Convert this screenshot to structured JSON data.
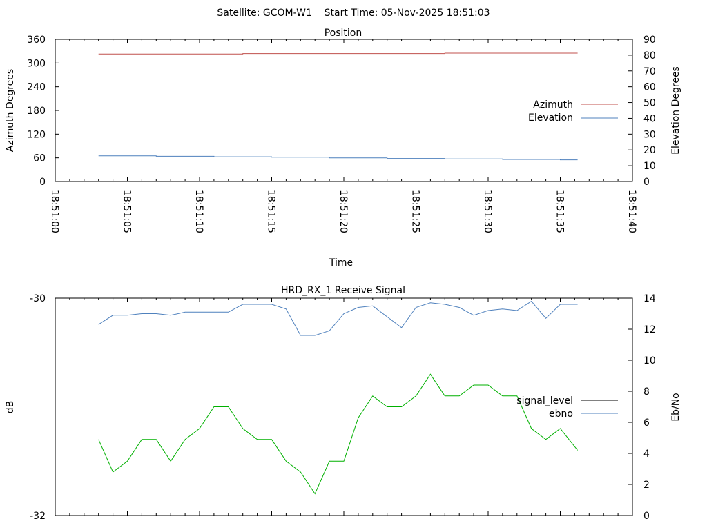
{
  "header": {
    "text": "Satellite: GCOM-W1    Start Time: 05-Nov-2025 18:51:03"
  },
  "chart_data": [
    {
      "type": "line",
      "title": "Position",
      "xlabel": "Time",
      "ylabel": "Azimuth Degrees",
      "y2label": "Elevation Degrees",
      "x_ticks": [
        "18:51:00",
        "18:51:05",
        "18:51:10",
        "18:51:15",
        "18:51:20",
        "18:51:25",
        "18:51:30",
        "18:51:35",
        "18:51:40"
      ],
      "y_ticks": [
        "0",
        "60",
        "120",
        "180",
        "240",
        "300",
        "360"
      ],
      "y2_ticks": [
        "0",
        "10",
        "20",
        "30",
        "40",
        "50",
        "60",
        "70",
        "80",
        "90"
      ],
      "ylim": [
        0,
        360
      ],
      "y2lim": [
        0,
        90
      ],
      "xlim_seconds": [
        0,
        40
      ],
      "legend": "right",
      "series": [
        {
          "name": "Azimuth",
          "axis": "y",
          "color": "#c0504d",
          "x": [
            3,
            13,
            13,
            27,
            27,
            36.2
          ],
          "values": [
            323,
            323,
            324,
            324,
            325,
            325
          ]
        },
        {
          "name": "Elevation",
          "axis": "y2",
          "color": "#4f81bd",
          "x": [
            3,
            7,
            7,
            11,
            11,
            15,
            15,
            19,
            19,
            23,
            23,
            27,
            27,
            31,
            31,
            35,
            35,
            36.2
          ],
          "values": [
            16.3,
            16.3,
            16.0,
            16.0,
            15.7,
            15.7,
            15.4,
            15.4,
            15.0,
            15.0,
            14.6,
            14.6,
            14.3,
            14.3,
            14.0,
            14.0,
            13.7,
            13.7
          ]
        }
      ]
    },
    {
      "type": "line",
      "title": "HRD_RX_1 Receive Signal",
      "xlabel": "",
      "ylabel": "dB",
      "y2label": "Eb/No",
      "y_ticks": [
        "-32",
        "-30"
      ],
      "y2_ticks": [
        "0",
        "2",
        "4",
        "6",
        "8",
        "10",
        "12",
        "14"
      ],
      "ylim": [
        -32,
        -30
      ],
      "y2lim": [
        0,
        14
      ],
      "xlim_seconds": [
        0,
        40
      ],
      "legend": "right",
      "series": [
        {
          "name": "signal_level",
          "axis": "y",
          "color": "#000000",
          "x": [],
          "values": []
        },
        {
          "name": "ebno",
          "axis": "y2",
          "color": "#4f81bd",
          "x": [
            3,
            4,
            5,
            6,
            7,
            8,
            9,
            10,
            11,
            12,
            13,
            14,
            15,
            16,
            17,
            18,
            19,
            20,
            21,
            22,
            23,
            24,
            25,
            26,
            27,
            28,
            29,
            30,
            31,
            32,
            33,
            34,
            35,
            36.2
          ],
          "values": [
            12.3,
            12.9,
            12.9,
            13.0,
            13.0,
            12.9,
            13.1,
            13.1,
            13.1,
            13.1,
            13.6,
            13.6,
            13.6,
            13.3,
            11.6,
            11.6,
            11.9,
            13.0,
            13.4,
            13.5,
            12.8,
            12.1,
            13.4,
            13.7,
            13.6,
            13.4,
            12.9,
            13.2,
            13.3,
            13.2,
            13.8,
            12.7,
            13.6,
            13.6
          ]
        },
        {
          "name": "",
          "axis": "y2",
          "color": "#00b000",
          "x": [
            3,
            4,
            5,
            6,
            7,
            8,
            9,
            10,
            11,
            12,
            13,
            14,
            15,
            16,
            17,
            18,
            19,
            20,
            21,
            22,
            23,
            24,
            25,
            26,
            27,
            28,
            29,
            30,
            31,
            32,
            33,
            34,
            35,
            36.2
          ],
          "values": [
            4.9,
            2.8,
            3.5,
            4.9,
            4.9,
            3.5,
            4.9,
            5.6,
            7.0,
            7.0,
            5.6,
            4.9,
            4.9,
            3.5,
            2.8,
            1.4,
            3.5,
            3.5,
            6.3,
            7.7,
            7.0,
            7.0,
            7.7,
            9.1,
            7.7,
            7.7,
            8.4,
            8.4,
            7.7,
            7.7,
            5.6,
            4.9,
            5.6,
            4.2
          ]
        }
      ]
    }
  ]
}
